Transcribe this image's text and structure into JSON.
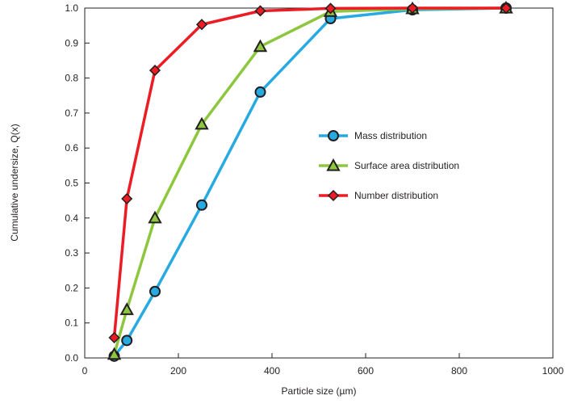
{
  "chart_data": {
    "type": "line",
    "title": "",
    "xlabel": "Particle size (µm)",
    "ylabel": "Cumulative undersize, Q(x)",
    "xlim": [
      0,
      1000
    ],
    "ylim": [
      0.0,
      1.0
    ],
    "x_ticks": [
      0,
      200,
      400,
      600,
      800,
      1000
    ],
    "y_ticks": [
      0.0,
      0.1,
      0.2,
      0.3,
      0.4,
      0.5,
      0.6,
      0.7,
      0.8,
      0.9,
      1.0
    ],
    "x_tick_labels": [
      "0",
      "200",
      "400",
      "600",
      "800",
      "1000"
    ],
    "y_tick_labels": [
      "0.0",
      "0.1",
      "0.2",
      "0.3",
      "0.4",
      "0.5",
      "0.6",
      "0.7",
      "0.8",
      "0.9",
      "1.0"
    ],
    "grid": false,
    "legend_position": "center-right",
    "series": [
      {
        "name": "Mass distribution",
        "color": "#27aae1",
        "marker": "circle",
        "x": [
          63,
          90,
          150,
          250,
          375,
          525,
          700,
          900
        ],
        "y": [
          0.005,
          0.05,
          0.19,
          0.437,
          0.76,
          0.97,
          0.995,
          1.0
        ]
      },
      {
        "name": "Surface area distribution",
        "color": "#8dc63f",
        "marker": "triangle",
        "x": [
          63,
          90,
          150,
          250,
          375,
          525,
          700,
          900
        ],
        "y": [
          0.01,
          0.138,
          0.4,
          0.668,
          0.89,
          0.99,
          0.998,
          1.0
        ]
      },
      {
        "name": "Number distribution",
        "color": "#ed1c24",
        "marker": "diamond",
        "x": [
          63,
          90,
          150,
          250,
          375,
          525,
          700,
          900
        ],
        "y": [
          0.058,
          0.455,
          0.822,
          0.953,
          0.992,
          0.999,
          1.0,
          1.0
        ]
      }
    ]
  }
}
